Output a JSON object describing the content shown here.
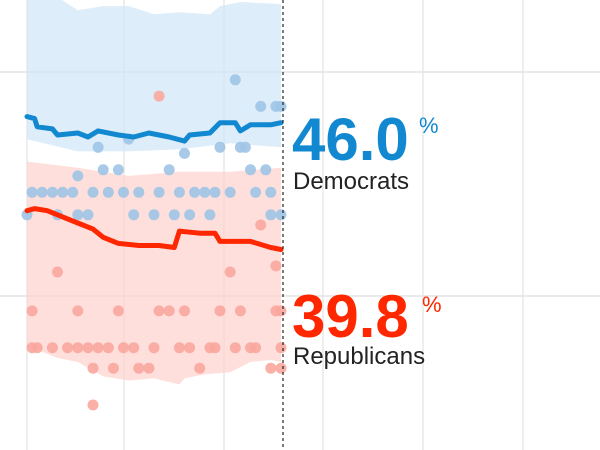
{
  "chart_data": {
    "type": "line",
    "title": "",
    "xlabel": "",
    "ylabel": "",
    "ylim": [
      30,
      52
    ],
    "grid": true,
    "legend": "right",
    "series": [
      {
        "name": "Democrats",
        "label_value": "46.0",
        "unit": "%",
        "color": "#1188d0",
        "band_color": "#cfe6f7",
        "dot_color": "#9ec4e6",
        "line": [
          [
            0,
            46.3
          ],
          [
            1.5,
            46.2
          ],
          [
            2,
            45.8
          ],
          [
            5,
            45.7
          ],
          [
            6,
            45.4
          ],
          [
            10,
            45.5
          ],
          [
            12,
            45.3
          ],
          [
            14,
            45.6
          ],
          [
            18,
            45.4
          ],
          [
            21,
            45.3
          ],
          [
            24,
            45.5
          ],
          [
            28,
            45.3
          ],
          [
            31,
            45.1
          ],
          [
            32,
            45.4
          ],
          [
            36,
            45.5
          ],
          [
            38,
            46.0
          ],
          [
            41,
            46.0
          ],
          [
            42,
            45.6
          ],
          [
            44,
            45.9
          ],
          [
            48,
            45.9
          ],
          [
            50,
            46.0
          ]
        ],
        "band_upper": [
          [
            0,
            52.4
          ],
          [
            5,
            52.3
          ],
          [
            10,
            51.5
          ],
          [
            15,
            51.7
          ],
          [
            20,
            51.7
          ],
          [
            25,
            51.3
          ],
          [
            30,
            51.4
          ],
          [
            36,
            51.3
          ],
          [
            37,
            51.5
          ],
          [
            38,
            51.7
          ],
          [
            42,
            51.9
          ],
          [
            50,
            51.8
          ]
        ],
        "band_lower": [
          [
            0,
            45.2
          ],
          [
            10,
            44.6
          ],
          [
            20,
            44.6
          ],
          [
            30,
            44.7
          ],
          [
            40,
            45.0
          ],
          [
            50,
            44.8
          ]
        ],
        "polls": [
          [
            0,
            41.5
          ],
          [
            1,
            42.6
          ],
          [
            3,
            42.6
          ],
          [
            5,
            42.6
          ],
          [
            6,
            41.5
          ],
          [
            7,
            42.6
          ],
          [
            9,
            42.6
          ],
          [
            10,
            43.4
          ],
          [
            10,
            41.5
          ],
          [
            12,
            41.5
          ],
          [
            13,
            42.6
          ],
          [
            14,
            44.8
          ],
          [
            15,
            43.7
          ],
          [
            16,
            42.6
          ],
          [
            18,
            43.7
          ],
          [
            19,
            42.6
          ],
          [
            20,
            45.2
          ],
          [
            21,
            41.5
          ],
          [
            22,
            42.6
          ],
          [
            25,
            41.5
          ],
          [
            26,
            42.6
          ],
          [
            28,
            43.7
          ],
          [
            29,
            41.5
          ],
          [
            30,
            42.6
          ],
          [
            31,
            44.5
          ],
          [
            32,
            41.5
          ],
          [
            33,
            42.6
          ],
          [
            35,
            42.6
          ],
          [
            36,
            41.5
          ],
          [
            37,
            42.6
          ],
          [
            38,
            44.8
          ],
          [
            40,
            42.6
          ],
          [
            41,
            48.1
          ],
          [
            42,
            44.8
          ],
          [
            43,
            44.8
          ],
          [
            44,
            43.7
          ],
          [
            45,
            42.6
          ],
          [
            46,
            46.8
          ],
          [
            47,
            43.7
          ],
          [
            48,
            42.6
          ],
          [
            48,
            41.5
          ],
          [
            49,
            46.8
          ],
          [
            50,
            41.5
          ],
          [
            50,
            46.8
          ]
        ]
      },
      {
        "name": "Republicans",
        "label_value": "39.8",
        "unit": "%",
        "color": "#ff2700",
        "band_color": "#ffd2cd",
        "dot_color": "#f9a79d",
        "line": [
          [
            0,
            41.7
          ],
          [
            1.5,
            41.8
          ],
          [
            4,
            41.7
          ],
          [
            8,
            41.3
          ],
          [
            10,
            41.1
          ],
          [
            13,
            40.8
          ],
          [
            15,
            40.4
          ],
          [
            18,
            40.1
          ],
          [
            22,
            40.0
          ],
          [
            26,
            40.0
          ],
          [
            29,
            39.9
          ],
          [
            30,
            40.7
          ],
          [
            34,
            40.6
          ],
          [
            37,
            40.6
          ],
          [
            38,
            40.2
          ],
          [
            44,
            40.2
          ],
          [
            48,
            39.9
          ],
          [
            50,
            39.8
          ]
        ],
        "band_upper": [
          [
            0,
            44.1
          ],
          [
            10,
            43.8
          ],
          [
            20,
            43.4
          ],
          [
            30,
            43.6
          ],
          [
            40,
            43.6
          ],
          [
            50,
            43.8
          ]
        ],
        "band_lower": [
          [
            0,
            35.0
          ],
          [
            2,
            34.9
          ],
          [
            6,
            34.5
          ],
          [
            10,
            34.3
          ],
          [
            15,
            33.6
          ],
          [
            20,
            33.4
          ],
          [
            25,
            33.5
          ],
          [
            30,
            33.2
          ],
          [
            31,
            33.5
          ],
          [
            35,
            33.7
          ],
          [
            40,
            33.8
          ],
          [
            44,
            34.3
          ],
          [
            48,
            34.4
          ],
          [
            50,
            34.3
          ]
        ],
        "polls": [
          [
            1,
            36.8
          ],
          [
            1,
            35.0
          ],
          [
            2,
            35.0
          ],
          [
            5,
            35.0
          ],
          [
            6,
            38.7
          ],
          [
            8,
            35.0
          ],
          [
            10,
            36.8
          ],
          [
            10,
            35.0
          ],
          [
            12,
            35.0
          ],
          [
            13,
            34.0
          ],
          [
            14,
            35.0
          ],
          [
            16,
            35.0
          ],
          [
            17,
            34.0
          ],
          [
            18,
            36.8
          ],
          [
            19,
            35.0
          ],
          [
            21,
            35.0
          ],
          [
            22,
            34.0
          ],
          [
            24,
            34.0
          ],
          [
            25,
            35.0
          ],
          [
            26,
            36.8
          ],
          [
            26,
            47.3
          ],
          [
            28,
            36.8
          ],
          [
            30,
            35.0
          ],
          [
            31,
            36.8
          ],
          [
            32,
            35.0
          ],
          [
            34,
            34.0
          ],
          [
            36,
            35.0
          ],
          [
            37,
            35.0
          ],
          [
            38,
            36.8
          ],
          [
            40,
            38.7
          ],
          [
            41,
            35.0
          ],
          [
            42,
            36.8
          ],
          [
            44,
            35.0
          ],
          [
            45,
            35.0
          ],
          [
            46,
            41.0
          ],
          [
            48,
            34.0
          ],
          [
            49,
            36.8
          ],
          [
            49,
            39.0
          ],
          [
            50,
            35.0
          ],
          [
            50,
            34.0
          ],
          [
            50,
            36.8
          ],
          [
            13,
            32.2
          ]
        ]
      }
    ]
  }
}
